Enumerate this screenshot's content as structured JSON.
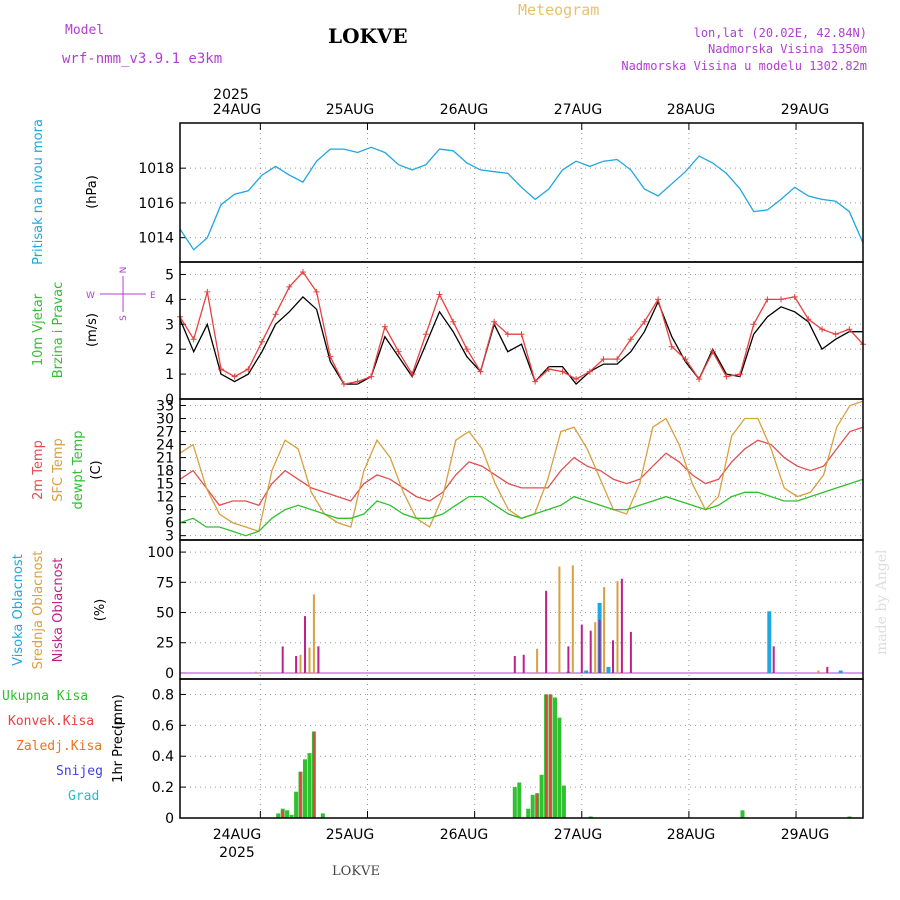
{
  "header": {
    "model_label": "Model",
    "model_name": "wrf-nmm_v3.9.1  e3km",
    "station": "LOKVE",
    "product": "Meteogram",
    "lonlat": "lon,lat (20.02E, 42.84N)",
    "elevation": "Nadmorska Visina 1350m",
    "model_elevation": "Nadmorska Visina u modelu 1302.82m",
    "footer_station": "LOKVE",
    "watermark": "made by Angel"
  },
  "colors": {
    "pressure": "#1ea7e0",
    "wind_speed": "#000000",
    "wind_gust": "#e84040",
    "temp_2m": "#e05050",
    "temp_sfc": "#d8a040",
    "dewpoint": "#30c030",
    "cloud_high": "#1ea7e0",
    "cloud_mid": "#d8a040",
    "cloud_low": "#c0208a",
    "precip_total": "#30c030",
    "precip_conv": "#e84040",
    "precip_frz": "#f07020",
    "snow": "#4040e0",
    "graupel": "#20c0c0",
    "label_purple": "#b040d0",
    "meteogram_title": "#e8c070"
  },
  "chart_data": [
    {
      "type": "line",
      "id": "pressure",
      "ylabel": "Pritisak na nivou mora",
      "unit": "(hPa)",
      "ylim": [
        1012.6,
        1020.6
      ],
      "yticks": [
        1014,
        1016,
        1018
      ],
      "x_start_hours": 0,
      "x_step_hours": 3,
      "series": [
        {
          "name": "Pritisak na nivou mora",
          "values": [
            1014.5,
            1013.3,
            1014.0,
            1015.9,
            1016.5,
            1016.7,
            1017.6,
            1018.1,
            1017.6,
            1017.2,
            1018.4,
            1019.1,
            1019.1,
            1018.9,
            1019.2,
            1018.9,
            1018.2,
            1017.9,
            1018.2,
            1019.1,
            1019.0,
            1018.3,
            1017.9,
            1017.8,
            1017.7,
            1016.9,
            1016.2,
            1016.8,
            1017.9,
            1018.4,
            1018.1,
            1018.4,
            1018.5,
            1017.9,
            1016.8,
            1016.4,
            1017.1,
            1017.8,
            1018.7,
            1018.3,
            1017.7,
            1016.8,
            1015.5,
            1015.6,
            1016.2,
            1016.9,
            1016.4,
            1016.2,
            1016.1,
            1015.5,
            1013.7
          ]
        }
      ]
    },
    {
      "type": "line",
      "id": "wind",
      "ylabel": [
        "10m Vjetar",
        "Brzina i Pravac"
      ],
      "unit": "(m/s)",
      "ylim": [
        0,
        5.5
      ],
      "yticks": [
        0,
        1,
        2,
        3,
        4,
        5
      ],
      "direction_legend": [
        "N",
        "S",
        "W",
        "E"
      ],
      "x_start_hours": 0,
      "x_step_hours": 3,
      "series": [
        {
          "name": "Brzina",
          "values": [
            3.2,
            1.9,
            3.0,
            1.0,
            0.7,
            1.0,
            1.9,
            3.0,
            3.5,
            4.1,
            3.6,
            1.5,
            0.6,
            0.6,
            0.9,
            2.5,
            1.7,
            0.9,
            2.2,
            3.5,
            2.7,
            1.7,
            1.1,
            3.0,
            1.9,
            2.2,
            0.7,
            1.3,
            1.3,
            0.6,
            1.1,
            1.4,
            1.4,
            1.9,
            2.7,
            3.9,
            2.5,
            1.5,
            0.8,
            2.0,
            1.0,
            0.9,
            2.6,
            3.3,
            3.7,
            3.5,
            3.1,
            2.0,
            2.4,
            2.7,
            2.7
          ]
        },
        {
          "name": "Udar",
          "values": [
            3.3,
            2.4,
            4.3,
            1.2,
            0.9,
            1.2,
            2.3,
            3.4,
            4.5,
            5.1,
            4.3,
            1.7,
            0.6,
            0.7,
            0.9,
            2.9,
            1.9,
            1.0,
            2.6,
            4.2,
            3.1,
            2.0,
            1.1,
            3.1,
            2.6,
            2.6,
            0.7,
            1.2,
            1.1,
            0.8,
            1.1,
            1.6,
            1.6,
            2.4,
            3.1,
            4.0,
            2.1,
            1.6,
            0.8,
            1.9,
            0.9,
            1.0,
            3.0,
            4.0,
            4.0,
            4.1,
            3.2,
            2.8,
            2.6,
            2.8,
            2.2
          ]
        }
      ]
    },
    {
      "type": "line",
      "id": "temperature",
      "ylabel": [
        "2m Temp",
        "SFC Temp",
        "dewpt Temp"
      ],
      "unit": "(C)",
      "ylim": [
        2,
        34.5
      ],
      "yticks": [
        3,
        6,
        9,
        12,
        15,
        18,
        21,
        24,
        27,
        30,
        33
      ],
      "x_start_hours": 0,
      "x_step_hours": 3,
      "series": [
        {
          "name": "2m Temp",
          "values": [
            16,
            18,
            14,
            10,
            11,
            11,
            10,
            15,
            18,
            16,
            14,
            13,
            12,
            11,
            15,
            17,
            16,
            14,
            12,
            11,
            13,
            17,
            20,
            19,
            17,
            15,
            14,
            14,
            14,
            18,
            21,
            19,
            18,
            16,
            15,
            16,
            19,
            22,
            20,
            17,
            15,
            16,
            20,
            23,
            25,
            24,
            21,
            19,
            18,
            19,
            23,
            27,
            28
          ]
        },
        {
          "name": "SFC Temp",
          "values": [
            22,
            24,
            14,
            8,
            6,
            5,
            4,
            18,
            25,
            23,
            13,
            8,
            6,
            5,
            18,
            25,
            21,
            13,
            7,
            5,
            12,
            25,
            27,
            23,
            15,
            9,
            7,
            8,
            16,
            27,
            28,
            23,
            16,
            9,
            8,
            15,
            28,
            30,
            24,
            15,
            9,
            12,
            26,
            30,
            30,
            23,
            14,
            12,
            13,
            17,
            28,
            33,
            34
          ]
        },
        {
          "name": "dewpt Temp",
          "values": [
            6,
            7,
            5,
            5,
            4,
            3,
            4,
            7,
            9,
            10,
            9,
            8,
            7,
            7,
            8,
            11,
            10,
            8,
            7,
            7,
            8,
            10,
            12,
            12,
            10,
            8,
            7,
            8,
            9,
            10,
            12,
            11,
            10,
            9,
            9,
            10,
            11,
            12,
            11,
            10,
            9,
            10,
            12,
            13,
            13,
            12,
            11,
            11,
            12,
            13,
            14,
            15,
            16
          ]
        }
      ]
    },
    {
      "type": "bar",
      "id": "clouds",
      "ylabel": [
        "Visoka Oblacnost",
        "Srednja Oblacnost",
        "Niska Oblacnost"
      ],
      "unit": "(%)",
      "ylim": [
        -5,
        110
      ],
      "yticks": [
        0,
        25,
        50,
        75,
        100
      ],
      "series": [
        {
          "name": "Visoka Oblacnost",
          "points": [
            [
              87,
              1
            ],
            [
              91,
              2
            ],
            [
              94,
              58
            ],
            [
              96,
              5
            ],
            [
              132,
              51
            ],
            [
              148,
              2
            ]
          ]
        },
        {
          "name": "Srednja Oblacnost",
          "points": [
            [
              17,
              1
            ],
            [
              27,
              15
            ],
            [
              29,
              21
            ],
            [
              30,
              65
            ],
            [
              31,
              22
            ],
            [
              80,
              20
            ],
            [
              85,
              88
            ],
            [
              88,
              89
            ],
            [
              93,
              42
            ],
            [
              95,
              71
            ],
            [
              98,
              76
            ],
            [
              143,
              2
            ]
          ]
        },
        {
          "name": "Niska Oblacnost",
          "points": [
            [
              23,
              22
            ],
            [
              26,
              14
            ],
            [
              28,
              47
            ],
            [
              31,
              22
            ],
            [
              75,
              14
            ],
            [
              77,
              15
            ],
            [
              82,
              68
            ],
            [
              87,
              22
            ],
            [
              90,
              40
            ],
            [
              92,
              35
            ],
            [
              94,
              44
            ],
            [
              97,
              27
            ],
            [
              99,
              78
            ],
            [
              101,
              34
            ],
            [
              133,
              22
            ],
            [
              145,
              5
            ],
            [
              176,
              12
            ],
            [
              180,
              4
            ],
            [
              188,
              37
            ],
            [
              190,
              4
            ],
            [
              208,
              7
            ]
          ]
        }
      ]
    },
    {
      "type": "bar",
      "id": "precip",
      "ylabel": "1hr Precip",
      "unit": "(mm)",
      "ylim": [
        0,
        0.9
      ],
      "yticks": [
        0,
        0.2,
        0.4,
        0.6,
        0.8
      ],
      "legend": [
        "Ukupna  Kisa",
        "Konvek.Kisa",
        "Zaledj.Kisa",
        "Snijeg",
        "Grad"
      ],
      "series": [
        {
          "name": "Ukupna Kisa",
          "points": [
            [
              22,
              0.03
            ],
            [
              23,
              0.06
            ],
            [
              24,
              0.05
            ],
            [
              25,
              0.02
            ],
            [
              26,
              0.17
            ],
            [
              27,
              0.3
            ],
            [
              28,
              0.38
            ],
            [
              29,
              0.42
            ],
            [
              30,
              0.56
            ],
            [
              32,
              0.03
            ],
            [
              75,
              0.2
            ],
            [
              76,
              0.23
            ],
            [
              78,
              0.06
            ],
            [
              79,
              0.15
            ],
            [
              80,
              0.16
            ],
            [
              81,
              0.28
            ],
            [
              82,
              0.8
            ],
            [
              83,
              0.8
            ],
            [
              84,
              0.78
            ],
            [
              85,
              0.65
            ],
            [
              86,
              0.21
            ],
            [
              92,
              0.01
            ],
            [
              126,
              0.05
            ],
            [
              150,
              0.01
            ],
            [
              168,
              0.01
            ],
            [
              178,
              0.05
            ]
          ]
        },
        {
          "name": "Konvek.Kisa",
          "points": [
            [
              23,
              0.05
            ],
            [
              27,
              0.3
            ],
            [
              30,
              0.56
            ],
            [
              80,
              0.16
            ],
            [
              82,
              0.8
            ],
            [
              83,
              0.8
            ]
          ]
        }
      ]
    }
  ],
  "x_axis": {
    "start_label_year": "2025",
    "dates": [
      "24AUG",
      "25AUG",
      "26AUG",
      "27AUG",
      "28AUG",
      "29AUG"
    ]
  }
}
